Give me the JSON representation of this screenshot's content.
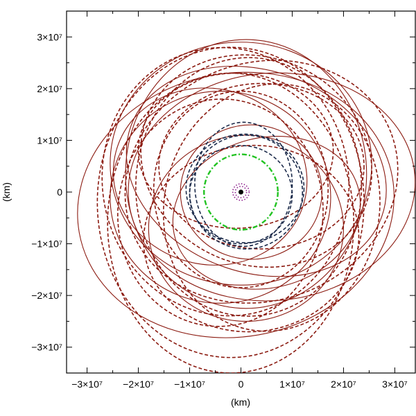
{
  "chart_data": {
    "type": "line",
    "title": "",
    "xlabel": "(km)",
    "ylabel": "(km)",
    "xlim": [
      -34000000,
      34000000
    ],
    "ylim": [
      -35000000,
      35000000
    ],
    "grid": false,
    "x_ticks": [
      {
        "value": -30000000,
        "label": "−3×10⁷"
      },
      {
        "value": -20000000,
        "label": "−2×10⁷"
      },
      {
        "value": -10000000,
        "label": "−1×10⁷"
      },
      {
        "value": 0,
        "label": "0"
      },
      {
        "value": 10000000,
        "label": "1×10⁷"
      },
      {
        "value": 20000000,
        "label": "2×10⁷"
      },
      {
        "value": 30000000,
        "label": "3×10⁷"
      }
    ],
    "y_ticks": [
      {
        "value": -30000000,
        "label": "−3×10⁷"
      },
      {
        "value": -20000000,
        "label": "−2×10⁷"
      },
      {
        "value": -10000000,
        "label": "−1×10⁷"
      },
      {
        "value": 0,
        "label": "0"
      },
      {
        "value": 10000000,
        "label": "1×10⁷"
      },
      {
        "value": 20000000,
        "label": "2×10⁷"
      },
      {
        "value": 30000000,
        "label": "3×10⁷"
      }
    ],
    "series": [
      {
        "color": "#8b1a10",
        "style": "solid",
        "orbits": [
          {
            "cx": 1000000,
            "cy": 3500000,
            "rx": 23500000,
            "ry": 26000000,
            "rot": 0
          },
          {
            "cx": -1000000,
            "cy": -2500000,
            "rx": 31000000,
            "ry": 25500000,
            "rot": 10
          },
          {
            "cx": 3000000,
            "cy": 4000000,
            "rx": 26000000,
            "ry": 19500000,
            "rot": -20
          },
          {
            "cx": -4000000,
            "cy": -1000000,
            "rx": 21500000,
            "ry": 20500000,
            "rot": 0
          },
          {
            "cx": 5000000,
            "cy": -4000000,
            "rx": 18500000,
            "ry": 14500000,
            "rot": 15
          },
          {
            "cx": 0,
            "cy": 5500000,
            "rx": 25500000,
            "ry": 23500000,
            "rot": 0
          },
          {
            "cx": 2000000,
            "cy": 0,
            "rx": 13800000,
            "ry": 13000000,
            "rot": 0
          },
          {
            "cx": -6000000,
            "cy": 3000000,
            "rx": 19000000,
            "ry": 17000000,
            "rot": -15
          },
          {
            "cx": 6000000,
            "cy": 1000000,
            "rx": 28000000,
            "ry": 22000000,
            "rot": 5
          },
          {
            "cx": 1000000,
            "cy": -7000000,
            "rx": 19000000,
            "ry": 18000000,
            "rot": 0
          }
        ]
      },
      {
        "color": "#8b1a10",
        "style": "dashed",
        "orbits": [
          {
            "cx": 1500000,
            "cy": 1000000,
            "rx": 22000000,
            "ry": 25000000,
            "rot": 0
          },
          {
            "cx": -2000000,
            "cy": -6000000,
            "rx": 24000000,
            "ry": 29000000,
            "rot": 0
          },
          {
            "cx": 4000000,
            "cy": 5000000,
            "rx": 20000000,
            "ry": 16000000,
            "rot": 0
          },
          {
            "cx": -3000000,
            "cy": 2000000,
            "rx": 24000000,
            "ry": 26000000,
            "rot": 10
          },
          {
            "cx": 6000000,
            "cy": -3000000,
            "rx": 21000000,
            "ry": 24000000,
            "rot": -10
          },
          {
            "cx": -1000000,
            "cy": 8000000,
            "rx": 19000000,
            "ry": 15000000,
            "rot": 0
          },
          {
            "cx": 2000000,
            "cy": -9000000,
            "rx": 21000000,
            "ry": 18000000,
            "rot": 5
          },
          {
            "cx": 0,
            "cy": 500000,
            "rx": 17000000,
            "ry": 19000000,
            "rot": 0
          },
          {
            "cx": 4000000,
            "cy": 2000000,
            "rx": 27000000,
            "ry": 23000000,
            "rot": 20
          },
          {
            "cx": -4000000,
            "cy": -4000000,
            "rx": 20000000,
            "ry": 22000000,
            "rot": -5
          },
          {
            "cx": 3000000,
            "cy": 6000000,
            "rx": 23000000,
            "ry": 20000000,
            "rot": -25
          },
          {
            "cx": -2000000,
            "cy": -2000000,
            "rx": 26000000,
            "ry": 30000000,
            "rot": 0
          }
        ]
      },
      {
        "color": "#1b2a4a",
        "style": "dashed",
        "orbits": [
          {
            "cx": 1000000,
            "cy": 0,
            "rx": 11000000,
            "ry": 11000000,
            "rot": 0
          },
          {
            "cx": 500000,
            "cy": 1500000,
            "rx": 9500000,
            "ry": 12000000,
            "rot": 0
          },
          {
            "cx": 0,
            "cy": -500000,
            "rx": 10000000,
            "ry": 9500000,
            "rot": 0
          },
          {
            "cx": 800000,
            "cy": 700000,
            "rx": 11500000,
            "ry": 10500000,
            "rot": 0
          }
        ]
      },
      {
        "color": "#22c322",
        "style": "dashdot",
        "orbits": [
          {
            "cx": 0,
            "cy": 0,
            "rx": 7200000,
            "ry": 7300000,
            "rot": 0
          }
        ]
      },
      {
        "color": "#8b1b8b",
        "style": "dotted",
        "orbits": [
          {
            "cx": 0,
            "cy": 0,
            "rx": 1600000,
            "ry": 1600000,
            "rot": 0
          },
          {
            "cx": 0,
            "cy": 0,
            "rx": 1100000,
            "ry": 1100000,
            "rot": 0
          }
        ]
      }
    ],
    "central_body": {
      "x": 0,
      "y": 0,
      "color": "#000000"
    }
  }
}
